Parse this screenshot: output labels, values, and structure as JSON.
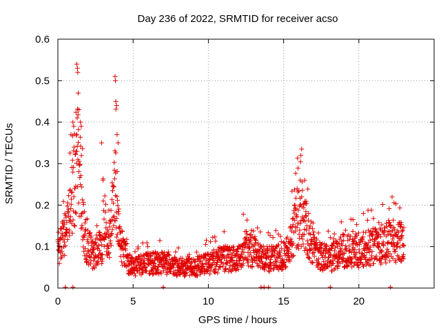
{
  "chart_data": {
    "type": "scatter",
    "title": "Day 236 of 2022, SRMTID for receiver acso",
    "xlabel": "GPS time / hours",
    "ylabel": "SRMTID / TECUs",
    "xlim": [
      0,
      25
    ],
    "ylim": [
      0,
      0.6
    ],
    "xticks": [
      0,
      5,
      10,
      15,
      20
    ],
    "xtick_labels": [
      "0",
      "5",
      "10",
      "15",
      "20"
    ],
    "yticks": [
      0,
      0.1,
      0.2,
      0.3,
      0.4,
      0.5,
      0.6
    ],
    "ytick_labels": [
      "0",
      "0.1",
      "0.2",
      "0.3",
      "0.4",
      "0.5",
      "0.6"
    ],
    "grid": true,
    "marker": "plus",
    "color": "#e00000",
    "x_range_hours": [
      0,
      23
    ],
    "series": [
      {
        "name": "SRMTID",
        "profile_x": [
          0,
          0.5,
          0.9,
          1.1,
          1.3,
          1.5,
          1.8,
          2.3,
          2.9,
          3.1,
          3.4,
          3.8,
          4.1,
          4.5,
          5.0,
          6.0,
          7.0,
          8.0,
          9.0,
          10.0,
          11.0,
          12.0,
          12.5,
          13.5,
          14.5,
          15.3,
          15.8,
          16.2,
          16.7,
          17.3,
          18.0,
          19.0,
          20.0,
          21.0,
          22.0,
          22.9
        ],
        "profile_y": [
          0.1,
          0.12,
          0.2,
          0.26,
          0.3,
          0.25,
          0.12,
          0.08,
          0.1,
          0.17,
          0.1,
          0.26,
          0.12,
          0.07,
          0.05,
          0.06,
          0.06,
          0.05,
          0.05,
          0.06,
          0.07,
          0.07,
          0.1,
          0.07,
          0.07,
          0.09,
          0.16,
          0.18,
          0.12,
          0.08,
          0.07,
          0.09,
          0.09,
          0.1,
          0.11,
          0.11
        ],
        "spike_x": [
          1.0,
          1.05,
          1.2,
          1.25,
          1.3,
          1.32,
          1.35,
          1.4,
          1.5,
          1.55,
          2.9,
          3.0,
          3.8,
          3.82,
          3.85,
          3.9,
          3.93,
          4.0,
          15.9,
          16.1,
          16.2,
          16.4,
          20.3
        ],
        "spike_y": [
          0.4,
          0.39,
          0.33,
          0.54,
          0.53,
          0.52,
          0.47,
          0.43,
          0.4,
          0.39,
          0.35,
          0.26,
          0.51,
          0.5,
          0.45,
          0.44,
          0.37,
          0.35,
          0.24,
          0.26,
          0.22,
          0.26,
          0.18
        ],
        "baseline_marks_x": [
          0.5,
          1.0,
          7.0,
          13.5,
          13.7,
          14.0,
          18.1,
          22.1
        ]
      }
    ]
  }
}
